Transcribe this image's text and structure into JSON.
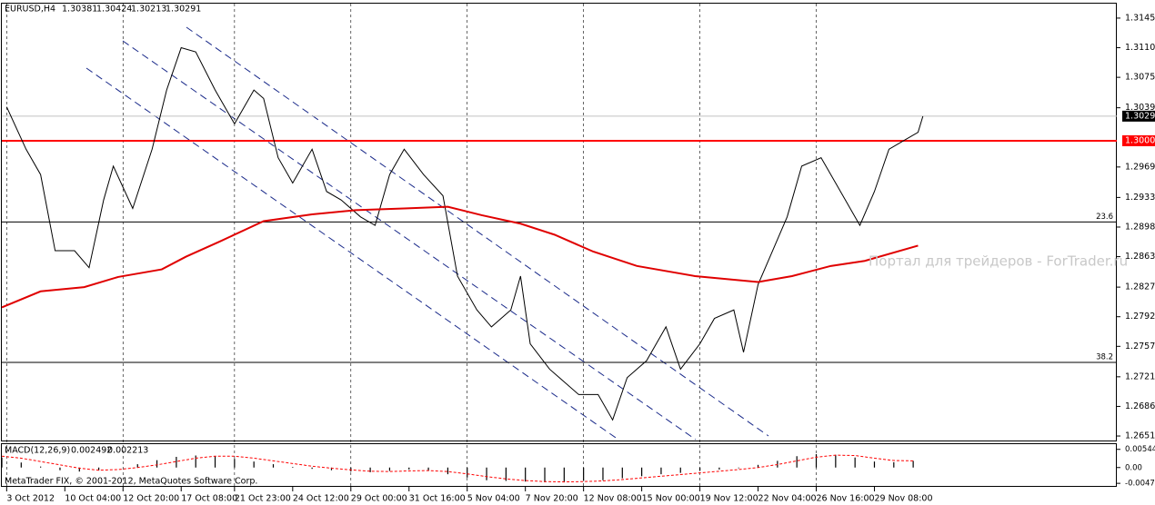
{
  "chart_data": [
    {
      "type": "line",
      "title": "EURUSD,H4",
      "ohlc": [
        1.30381,
        1.30424,
        1.30213,
        1.30291
      ],
      "watermark": "Портал для трейдеров - ForTrader.ru",
      "xlim": [
        0,
        230
      ],
      "xticks": [
        {
          "value": 1,
          "label": "3 Oct 2012"
        },
        {
          "value": 13,
          "label": "10 Oct 04:00"
        },
        {
          "value": 25,
          "label": "12 Oct 20:00"
        },
        {
          "value": 37,
          "label": "17 Oct 08:00"
        },
        {
          "value": 48,
          "label": "21 Oct 23:00"
        },
        {
          "value": 60,
          "label": "24 Oct 12:00"
        },
        {
          "value": 72,
          "label": "29 Oct 00:00"
        },
        {
          "value": 84,
          "label": "31 Oct 16:00"
        },
        {
          "value": 96,
          "label": "5 Nov 04:00"
        },
        {
          "value": 108,
          "label": "7 Nov 20:00"
        },
        {
          "value": 120,
          "label": "12 Nov 08:00"
        },
        {
          "value": 132,
          "label": "15 Nov 00:00"
        },
        {
          "value": 144,
          "label": "19 Nov 12:00"
        },
        {
          "value": 156,
          "label": "22 Nov 04:00"
        },
        {
          "value": 168,
          "label": "26 Nov 16:00"
        },
        {
          "value": 180,
          "label": "29 Nov 08:00"
        }
      ],
      "ylim": [
        1.26446,
        1.31621
      ],
      "yticks": [
        {
          "value": 1.3145,
          "label": "1.31450"
        },
        {
          "value": 1.311,
          "label": "1.31100"
        },
        {
          "value": 1.3075,
          "label": "1.30750"
        },
        {
          "value": 1.3039,
          "label": "1.30390"
        },
        {
          "value": 1.2969,
          "label": "1.29690"
        },
        {
          "value": 1.2933,
          "label": "1.29330"
        },
        {
          "value": 1.2898,
          "label": "1.28980"
        },
        {
          "value": 1.2863,
          "label": "1.28630"
        },
        {
          "value": 1.2827,
          "label": "1.28270"
        },
        {
          "value": 1.2792,
          "label": "1.27920"
        },
        {
          "value": 1.2757,
          "label": "1.27570"
        },
        {
          "value": 1.2721,
          "label": "1.27210"
        },
        {
          "value": 1.2686,
          "label": "1.26860"
        },
        {
          "value": 1.2651,
          "label": "1.26510"
        }
      ],
      "grid": true,
      "series": [
        {
          "color": "#000000",
          "x": [
            1,
            5,
            8,
            11,
            15,
            18,
            21,
            23,
            27,
            31,
            34,
            37,
            40,
            44,
            48,
            52,
            54,
            57,
            60,
            64,
            67,
            70,
            74,
            77,
            80,
            83,
            87,
            91,
            94,
            98,
            101,
            105,
            107,
            109,
            113,
            115,
            119,
            123,
            126,
            129,
            133,
            137,
            140,
            144,
            147,
            151,
            153,
            156,
            159,
            162,
            165,
            169,
            172,
            174,
            177,
            180,
            183,
            186,
            189,
            190
          ],
          "values": [
            1.304,
            1.299,
            1.296,
            1.287,
            1.287,
            1.285,
            1.293,
            1.297,
            1.292,
            1.299,
            1.306,
            1.311,
            1.3105,
            1.306,
            1.302,
            1.306,
            1.305,
            1.298,
            1.295,
            1.299,
            1.294,
            1.293,
            1.291,
            1.29,
            1.296,
            1.299,
            1.296,
            1.2935,
            1.284,
            1.28,
            1.278,
            1.28,
            1.284,
            1.276,
            1.273,
            1.272,
            1.27,
            1.27,
            1.267,
            1.272,
            1.274,
            1.278,
            1.273,
            1.276,
            1.279,
            1.28,
            1.275,
            1.283,
            1.287,
            1.291,
            1.297,
            1.298,
            1.295,
            1.293,
            1.29,
            1.294,
            1.299,
            1.3,
            1.301,
            1.3029
          ]
        },
        {
          "color": "#e00000",
          "x": [
            0,
            8,
            17,
            24,
            33,
            38,
            45,
            54,
            64,
            73,
            83,
            92,
            99,
            107,
            114,
            122,
            131,
            143,
            156,
            163,
            171,
            178,
            189
          ],
          "values": [
            1.2803,
            1.2822,
            1.2827,
            1.2839,
            1.2848,
            1.2863,
            1.2881,
            1.2905,
            1.2913,
            1.2918,
            1.292,
            1.2922,
            1.2912,
            1.2902,
            1.2889,
            1.2869,
            1.2852,
            1.284,
            1.2833,
            1.284,
            1.2852,
            1.2858,
            1.2876
          ]
        }
      ],
      "level": {
        "price": 1.3,
        "label": "1.30000",
        "color": "#ff0000"
      },
      "fibs": [
        {
          "level": 23.6,
          "price": 1.2904
        },
        {
          "level": 38.2,
          "price": 1.2738
        }
      ]
    },
    {
      "type": "bar",
      "title": "MACD(12,26,9)",
      "readings": [
        0.002492,
        0.002213
      ],
      "footer": "MetaTrader FIX, © 2001-2012, MetaQuotes Software Corp.",
      "xlim": [
        0,
        230
      ],
      "ylim": [
        -0.0055,
        0.007
      ],
      "yticks": [
        0.005441,
        {
          "value": 0,
          "label": "0.00"
        },
        -0.004723
      ],
      "x": [
        0,
        4,
        8,
        12,
        16,
        20,
        24,
        28,
        32,
        36,
        40,
        44,
        48,
        52,
        56,
        60,
        64,
        68,
        72,
        76,
        80,
        84,
        88,
        92,
        96,
        100,
        104,
        108,
        112,
        116,
        120,
        124,
        128,
        132,
        136,
        140,
        144,
        148,
        152,
        156,
        160,
        164,
        168,
        172,
        176,
        180,
        184,
        188
      ],
      "series": [
        {
          "color": "#000000",
          "values": [
            0.003,
            0.0015,
            0.0003,
            -0.0008,
            -0.0012,
            -0.0008,
            0,
            0.001,
            0.0022,
            0.0032,
            0.0036,
            0.0034,
            0.0026,
            0.0018,
            0.001,
            0.0002,
            -0.0004,
            -0.0008,
            -0.0012,
            -0.0014,
            -0.001,
            -0.0006,
            -0.001,
            -0.002,
            -0.003,
            -0.0038,
            -0.004,
            -0.0042,
            -0.0044,
            -0.0043,
            -0.004,
            -0.0038,
            -0.0032,
            -0.0026,
            -0.002,
            -0.0016,
            -0.001,
            -0.0006,
            -0.0002,
            0.0008,
            0.002,
            0.0034,
            0.004,
            0.0038,
            0.003,
            0.0018,
            0.0016,
            0.002
          ]
        },
        {
          "color": "#ff0000",
          "values": [
            0.0034,
            0.0028,
            0.0018,
            0.0008,
            -0.0002,
            -0.0008,
            -0.0006,
            0,
            0.0008,
            0.0018,
            0.0028,
            0.0034,
            0.0034,
            0.0028,
            0.002,
            0.0012,
            0.0004,
            -0.0002,
            -0.0007,
            -0.0011,
            -0.0012,
            -0.001,
            -0.0009,
            -0.0012,
            -0.0019,
            -0.0027,
            -0.0034,
            -0.0039,
            -0.0042,
            -0.0043,
            -0.0042,
            -0.004,
            -0.0036,
            -0.0031,
            -0.0026,
            -0.0021,
            -0.0016,
            -0.0011,
            -0.0006,
            0,
            0.0009,
            0.002,
            0.0031,
            0.0037,
            0.0036,
            0.0028,
            0.0021,
            0.002
          ]
        }
      ]
    }
  ]
}
